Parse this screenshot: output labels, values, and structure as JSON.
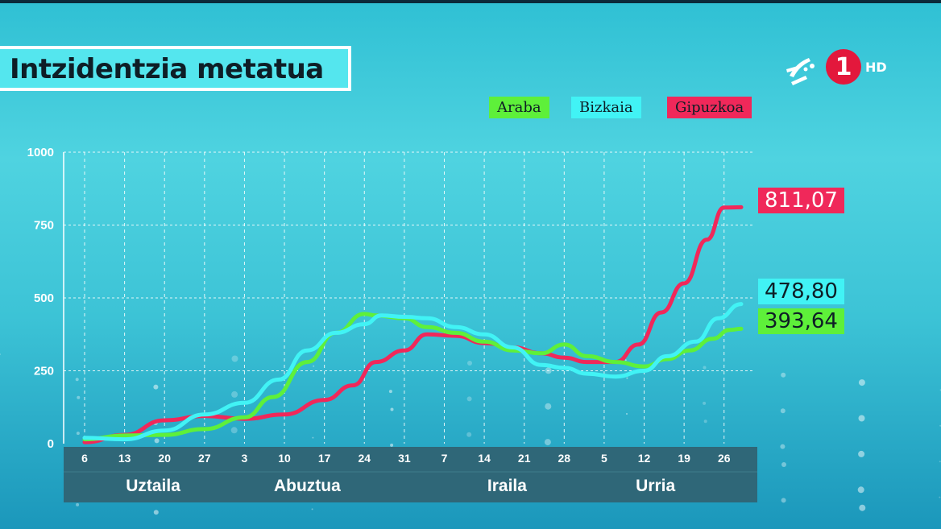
{
  "header": {
    "title": "Intzidentzia metatua"
  },
  "logo": {
    "channel_number": "1",
    "hd_label": "HD",
    "icon": "etb-logo-icon"
  },
  "colors": {
    "araba": "#5ef03a",
    "bizkaia": "#41f3f5",
    "gipuzkoa": "#f0285a",
    "band": "#2f6778",
    "title_bg": "#54e6ee"
  },
  "legend": [
    {
      "label": "Araba",
      "color": "#5ef03a"
    },
    {
      "label": "Bizkaia",
      "color": "#41f3f5"
    },
    {
      "label": "Gipuzkoa",
      "color": "#f0285a"
    }
  ],
  "value_tags": {
    "gipuzkoa": "811,07",
    "bizkaia": "478,80",
    "araba": "393,64"
  },
  "chart_data": {
    "type": "line",
    "title": "Intzidentzia metatua",
    "x_unit": "day",
    "x_start": "2020-07-06",
    "x_end": "2020-10-29",
    "ylim": [
      0,
      1000
    ],
    "yticks": [
      0,
      250,
      500,
      750,
      1000
    ],
    "ytick_labels": [
      "0",
      "250",
      "500",
      "750",
      "1000"
    ],
    "xtick_dates": [
      "2020-07-06",
      "2020-07-13",
      "2020-07-20",
      "2020-07-27",
      "2020-08-03",
      "2020-08-10",
      "2020-08-17",
      "2020-08-24",
      "2020-08-31",
      "2020-09-07",
      "2020-09-14",
      "2020-09-21",
      "2020-09-28",
      "2020-10-05",
      "2020-10-12",
      "2020-10-19",
      "2020-10-26"
    ],
    "xtick_labels": [
      "6",
      "13",
      "20",
      "27",
      "3",
      "10",
      "17",
      "24",
      "31",
      "7",
      "14",
      "21",
      "28",
      "5",
      "12",
      "19",
      "26"
    ],
    "months": [
      {
        "label": "Uztaila",
        "center": "2020-07-18"
      },
      {
        "label": "Abuztua",
        "center": "2020-08-14"
      },
      {
        "label": "Iraila",
        "center": "2020-09-18"
      },
      {
        "label": "Urria",
        "center": "2020-10-14"
      }
    ],
    "grid": true,
    "legend_position": "top-right",
    "series": [
      {
        "name": "Araba",
        "color": "#5ef03a",
        "x": [
          "2020-07-06",
          "2020-07-13",
          "2020-07-20",
          "2020-07-27",
          "2020-08-03",
          "2020-08-08",
          "2020-08-14",
          "2020-08-19",
          "2020-08-24",
          "2020-08-26",
          "2020-08-31",
          "2020-09-04",
          "2020-09-09",
          "2020-09-14",
          "2020-09-19",
          "2020-09-24",
          "2020-09-28",
          "2020-10-02",
          "2020-10-07",
          "2020-10-12",
          "2020-10-16",
          "2020-10-20",
          "2020-10-24",
          "2020-10-27",
          "2020-10-29"
        ],
        "values": [
          15,
          28,
          30,
          50,
          90,
          160,
          280,
          380,
          445,
          440,
          430,
          400,
          380,
          350,
          320,
          310,
          340,
          300,
          280,
          265,
          290,
          320,
          360,
          390,
          394
        ]
      },
      {
        "name": "Bizkaia",
        "color": "#41f3f5",
        "x": [
          "2020-07-06",
          "2020-07-13",
          "2020-07-20",
          "2020-07-27",
          "2020-08-03",
          "2020-08-09",
          "2020-08-14",
          "2020-08-19",
          "2020-08-24",
          "2020-08-27",
          "2020-08-31",
          "2020-09-04",
          "2020-09-09",
          "2020-09-14",
          "2020-09-19",
          "2020-09-24",
          "2020-09-28",
          "2020-10-02",
          "2020-10-07",
          "2020-10-12",
          "2020-10-16",
          "2020-10-21",
          "2020-10-25",
          "2020-10-29"
        ],
        "values": [
          20,
          15,
          45,
          100,
          140,
          220,
          320,
          380,
          410,
          440,
          435,
          430,
          400,
          375,
          330,
          270,
          260,
          240,
          230,
          250,
          300,
          350,
          430,
          479
        ]
      },
      {
        "name": "Gipuzkoa",
        "color": "#f0285a",
        "x": [
          "2020-07-06",
          "2020-07-13",
          "2020-07-20",
          "2020-07-27",
          "2020-08-03",
          "2020-08-10",
          "2020-08-17",
          "2020-08-22",
          "2020-08-26",
          "2020-08-31",
          "2020-09-04",
          "2020-09-09",
          "2020-09-14",
          "2020-09-19",
          "2020-09-24",
          "2020-09-28",
          "2020-10-02",
          "2020-10-07",
          "2020-10-11",
          "2020-10-15",
          "2020-10-19",
          "2020-10-23",
          "2020-10-26",
          "2020-10-29"
        ],
        "values": [
          5,
          30,
          80,
          95,
          85,
          100,
          150,
          200,
          280,
          320,
          375,
          370,
          345,
          330,
          310,
          295,
          280,
          280,
          340,
          450,
          550,
          700,
          810,
          811
        ]
      }
    ]
  }
}
